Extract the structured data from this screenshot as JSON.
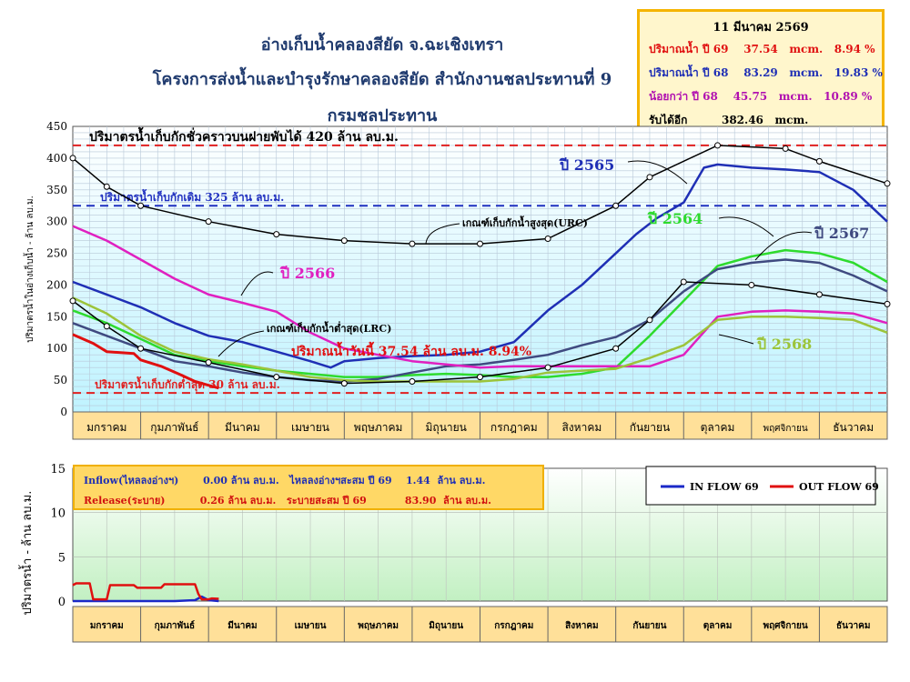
{
  "title_line1": "อ่างเก็บน้ำคลองสียัด จ.ฉะเชิงเทรา",
  "title_line2": "โครงการส่งน้ำและบำรุงรักษาคลองสียัด สำนักงานชลประทานที่ 9",
  "title_line3": "กรมชลประทาน",
  "info": {
    "date": "11 มีนาคม 2569",
    "row1_label": "ปริมาณน้ำ ปี 69",
    "row1_value": "37.54",
    "row1_unit": "mcm.",
    "row1_pct": "8.94 %",
    "row2_label": "ปริมาณน้ำ ปี 68",
    "row2_value": "83.29",
    "row2_unit": "mcm.",
    "row2_pct": "19.83 %",
    "row3_label": "น้อยกว่า ปี 68",
    "row3_value": "45.75",
    "row3_unit": "mcm.",
    "row3_pct": "10.89 %",
    "row4_label": "รับได้อีก",
    "row4_value": "382.46",
    "row4_unit": "mcm."
  },
  "colors": {
    "y2565": "#1f2fb5",
    "y2564": "#2edb2e",
    "y2567": "#3f4a80",
    "y2566": "#e020c0",
    "y2568": "#9cc43a",
    "y2569": "#e01010",
    "curve": "#000000",
    "red_dash": "#e02020",
    "blue_dash": "#2030c0",
    "inflow": "#1a28c8",
    "outflow": "#e01010"
  },
  "chart_data": [
    {
      "type": "line",
      "ylabel": "ปริมาตรน้ำในอ่างเก็บน้ำ - ล้าน ลบ.ม.",
      "ylim": [
        0,
        450
      ],
      "yticks": [
        "0",
        "50",
        "100",
        "150",
        "200",
        "250",
        "300",
        "350",
        "400",
        "450"
      ],
      "months": [
        "มกราคม",
        "กุมภาพันธ์",
        "มีนาคม",
        "เมษายน",
        "พฤษภาคม",
        "มิถุนายน",
        "กรกฎาคม",
        "สิงหาคม",
        "กันยายน",
        "ตุลาคม",
        "พฤศจิกายน",
        "ธันวาคม"
      ],
      "grid": true,
      "reference_lines": [
        {
          "label": "ปริมาตรน้ำเก็บกักชั่วคราวบนฝายพับได้ 420 ล้าน ลบ.ม.",
          "value": 420,
          "color": "#e02020"
        },
        {
          "label": "ปริมาตรน้ำเก็บกักเดิม 325 ล้าน ลบ.ม.",
          "value": 325,
          "color": "#2030c0"
        },
        {
          "label": "ปริมาตรน้ำเก็บกักต่ำสุด 30 ล้าน ลบ.ม.",
          "value": 30,
          "color": "#e02020"
        }
      ],
      "annotations": {
        "urc": "เกณฑ์เก็บกักน้ำสูงสุด(URC)",
        "lrc": "เกณฑ์เก็บกักน้ำต่ำสุด(LRC)",
        "today": "ปริมาณน้ำวันนี้ 37.54 ล้าน ลบ.ม. 8.94%"
      },
      "series": [
        {
          "name": "ปี 2565",
          "key": "y2565",
          "x": [
            0,
            0.5,
            1,
            1.5,
            2,
            2.5,
            3,
            3.5,
            3.8,
            4,
            4.5,
            5,
            5.5,
            6,
            6.5,
            7,
            7.5,
            8,
            8.3,
            8.6,
            9,
            9.3,
            9.5,
            10,
            10.5,
            11,
            11.5,
            12
          ],
          "y": [
            205,
            185,
            165,
            140,
            120,
            110,
            95,
            80,
            70,
            80,
            85,
            88,
            90,
            95,
            110,
            160,
            200,
            250,
            280,
            305,
            330,
            385,
            390,
            385,
            382,
            378,
            350,
            300
          ]
        },
        {
          "name": "ปี 2564",
          "key": "y2564",
          "x": [
            0,
            0.5,
            1,
            1.5,
            2,
            2.5,
            3,
            3.5,
            4,
            4.5,
            5,
            5.5,
            6,
            6.5,
            7,
            7.5,
            8,
            8.5,
            9,
            9.5,
            10,
            10.5,
            11,
            11.5,
            12
          ],
          "y": [
            160,
            140,
            115,
            90,
            80,
            72,
            65,
            60,
            55,
            55,
            58,
            60,
            58,
            55,
            55,
            60,
            70,
            120,
            175,
            230,
            245,
            255,
            250,
            235,
            205
          ]
        },
        {
          "name": "ปี 2567",
          "key": "y2567",
          "x": [
            0,
            0.5,
            1,
            1.5,
            2,
            2.5,
            3,
            3.5,
            4,
            4.5,
            5,
            5.5,
            6,
            6.5,
            7,
            7.5,
            8,
            8.5,
            9,
            9.5,
            10,
            10.5,
            11,
            11.5,
            12
          ],
          "y": [
            140,
            120,
            100,
            80,
            72,
            62,
            55,
            50,
            48,
            52,
            62,
            72,
            75,
            82,
            90,
            105,
            118,
            145,
            190,
            225,
            235,
            240,
            235,
            215,
            190
          ]
        },
        {
          "name": "ปี 2566",
          "key": "y2566",
          "x": [
            0,
            0.5,
            1,
            1.5,
            2,
            2.5,
            3,
            3.5,
            4,
            4.5,
            5,
            5.5,
            6,
            6.5,
            7,
            7.5,
            8,
            8.5,
            9,
            9.5,
            10,
            10.5,
            11,
            11.5,
            12
          ],
          "y": [
            293,
            270,
            240,
            210,
            185,
            172,
            158,
            125,
            100,
            90,
            80,
            75,
            70,
            72,
            72,
            72,
            72,
            72,
            90,
            150,
            158,
            160,
            158,
            155,
            140
          ]
        },
        {
          "name": "ปี 2568",
          "key": "y2568",
          "x": [
            0,
            0.5,
            1,
            1.5,
            2,
            2.5,
            3,
            3.5,
            4,
            4.5,
            5,
            5.5,
            6,
            6.5,
            7,
            7.5,
            8,
            8.5,
            9,
            9.5,
            10,
            10.5,
            11,
            11.5,
            12
          ],
          "y": [
            180,
            155,
            120,
            95,
            83,
            75,
            65,
            55,
            50,
            48,
            48,
            48,
            48,
            52,
            62,
            65,
            68,
            85,
            105,
            145,
            150,
            150,
            148,
            145,
            125
          ]
        },
        {
          "name": "ปี 2569",
          "key": "y2569",
          "x": [
            0,
            0.3,
            0.5,
            0.9,
            1.0,
            1.3,
            1.6,
            1.8,
            2.0,
            2.15
          ],
          "y": [
            122,
            108,
            95,
            92,
            82,
            72,
            58,
            48,
            42,
            37.54
          ]
        },
        {
          "name": "URC",
          "key": "curve",
          "x": [
            0,
            0.5,
            1,
            2,
            3,
            4,
            5,
            6,
            7,
            8,
            8.5,
            9.5,
            10.5,
            11,
            12
          ],
          "y": [
            400,
            355,
            325,
            300,
            280,
            270,
            265,
            265,
            273,
            325,
            370,
            420,
            415,
            395,
            360
          ],
          "markers": true
        },
        {
          "name": "LRC",
          "key": "curve",
          "x": [
            0,
            0.5,
            1,
            2,
            3,
            4,
            5,
            6,
            7,
            8,
            8.5,
            9,
            10,
            11,
            12
          ],
          "y": [
            175,
            135,
            100,
            78,
            55,
            45,
            48,
            55,
            70,
            100,
            145,
            205,
            200,
            185,
            170
          ],
          "markers": true
        }
      ]
    },
    {
      "type": "line",
      "ylabel": "ปริมาตรน้ำ - ล้าน ลบ.ม.",
      "ylim": [
        0,
        15
      ],
      "yticks": [
        "0",
        "5",
        "10",
        "15"
      ],
      "months": [
        "มกราคม",
        "กุมภาพันธ์",
        "มีนาคม",
        "เมษายน",
        "พฤษภาคม",
        "มิถุนายน",
        "กรกฎาคม",
        "สิงหาคม",
        "กันยายน",
        "ตุลาคม",
        "พฤศจิกายน",
        "ธันวาคม"
      ],
      "legend": [
        "IN FLOW 69",
        "OUT FLOW 69"
      ],
      "legend_position": "top-right",
      "stats": {
        "inflow_label": "Inflow(ไหลลงอ่างฯ)",
        "inflow_value": "0.00",
        "inflow_unit": "ล้าน ลบ.ม.",
        "inflow_acc_label": "ไหลลงอ่างฯสะสม ปี 69",
        "inflow_acc_value": "1.44",
        "inflow_acc_unit": "ล้าน ลบ.ม.",
        "release_label": "Release(ระบาย)",
        "release_value": "0.26",
        "release_unit": "ล้าน ลบ.ม.",
        "release_acc_label": "ระบายสะสม ปี 69",
        "release_acc_value": "83.90",
        "release_acc_unit": "ล้าน ลบ.ม."
      },
      "series": [
        {
          "name": "IN FLOW 69",
          "key": "inflow",
          "x": [
            0,
            1.5,
            1.8,
            1.9,
            2.0,
            2.15
          ],
          "y": [
            0,
            0,
            0.1,
            0.5,
            0.1,
            0
          ]
        },
        {
          "name": "OUT FLOW 69",
          "key": "outflow",
          "x": [
            0,
            0.05,
            0.25,
            0.3,
            0.5,
            0.55,
            0.9,
            0.95,
            1.3,
            1.35,
            1.5,
            1.55,
            1.8,
            1.85,
            1.9,
            2.0,
            2.05,
            2.15
          ],
          "y": [
            1.8,
            2.0,
            2.0,
            0.2,
            0.2,
            1.8,
            1.8,
            1.5,
            1.5,
            1.9,
            1.9,
            1.9,
            1.9,
            0.8,
            0.2,
            0.2,
            0.3,
            0.26
          ]
        }
      ]
    }
  ]
}
